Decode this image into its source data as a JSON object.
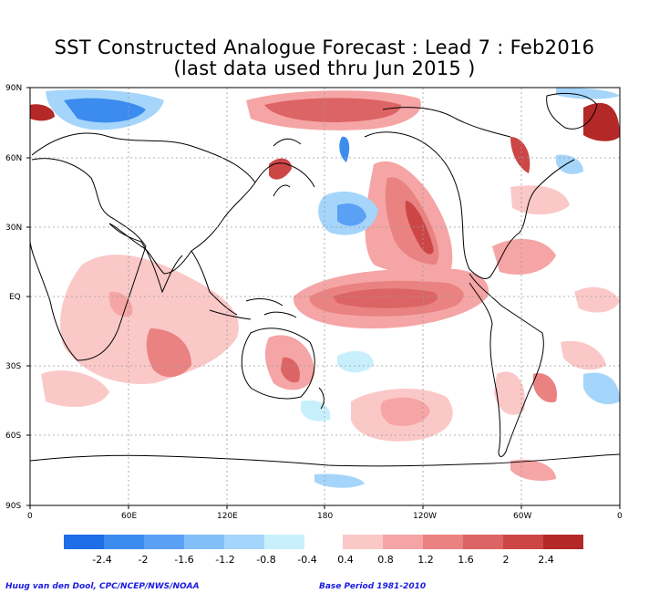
{
  "title": {
    "line1": "SST Constructed Analogue Forecast : Lead 7 : Feb2016",
    "line2": "(last data used thru Jun 2015 )"
  },
  "axes": {
    "lat_labels": [
      "90N",
      "60N",
      "30N",
      "EQ",
      "30S",
      "60S",
      "90S"
    ],
    "lon_labels": [
      "0",
      "60E",
      "120E",
      "180",
      "120W",
      "60W",
      "0"
    ]
  },
  "legend": {
    "negative_labels": [
      "-2.4",
      "-2",
      "-1.6",
      "-1.2",
      "-0.8",
      "-0.4"
    ],
    "positive_labels": [
      "0.4",
      "0.8",
      "1.2",
      "1.6",
      "2",
      "2.4"
    ],
    "negative_colors": [
      "#1e6ee8",
      "#3c8cf0",
      "#5aa0f5",
      "#82bef8",
      "#a5d5fa",
      "#c8f0fc"
    ],
    "positive_colors": [
      "#fbc8c8",
      "#f5a5a5",
      "#ea8282",
      "#dc6464",
      "#cc4646",
      "#b42828"
    ]
  },
  "credits": {
    "left": "Huug van den Dool, CPC/NCEP/NWS/NOAA",
    "right": "Base Period 1981-2010"
  },
  "colors": {
    "land_outline": "#000000",
    "grid": "#9a9a9a",
    "warm_anomaly": "#e07070",
    "cool_anomaly": "#7fbff5"
  }
}
